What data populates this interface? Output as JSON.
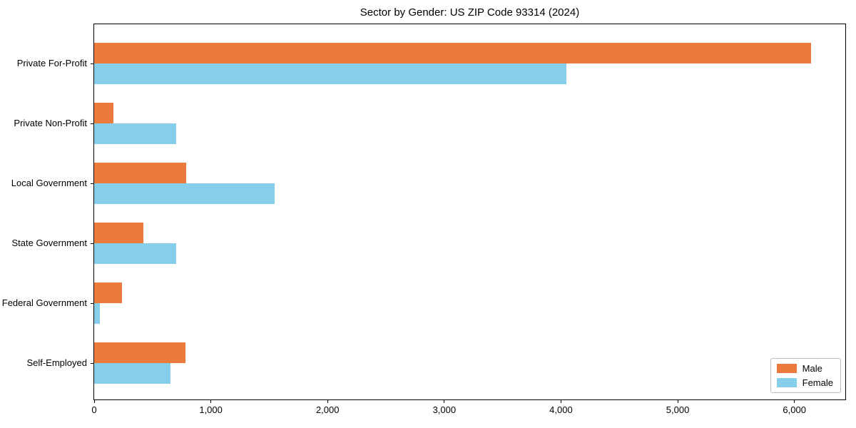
{
  "title": "Sector by Gender: US ZIP Code 93314 (2024)",
  "chart_data": {
    "type": "bar",
    "orientation": "horizontal",
    "title": "Sector by Gender: US ZIP Code 93314 (2024)",
    "categories": [
      "Private For-Profit",
      "Private Non-Profit",
      "Local Government",
      "State Government",
      "Federal Government",
      "Self-Employed"
    ],
    "series": [
      {
        "name": "Male",
        "color": "#ec7a3c",
        "values": [
          6140,
          165,
          790,
          420,
          240,
          780
        ]
      },
      {
        "name": "Female",
        "color": "#87ceeb",
        "values": [
          4045,
          700,
          1545,
          700,
          50,
          655
        ]
      }
    ],
    "xlabel": "",
    "ylabel": "",
    "xlim": [
      0,
      6448
    ],
    "x_ticks": [
      0,
      1000,
      2000,
      3000,
      4000,
      5000,
      6000
    ],
    "x_tick_labels": [
      "0",
      "1,000",
      "2,000",
      "3,000",
      "4,000",
      "5,000",
      "6,000"
    ],
    "grid": false,
    "legend_position": "lower right"
  },
  "legend": {
    "items": [
      {
        "label": "Male",
        "color": "#ec7a3c"
      },
      {
        "label": "Female",
        "color": "#87ceeb"
      }
    ]
  }
}
